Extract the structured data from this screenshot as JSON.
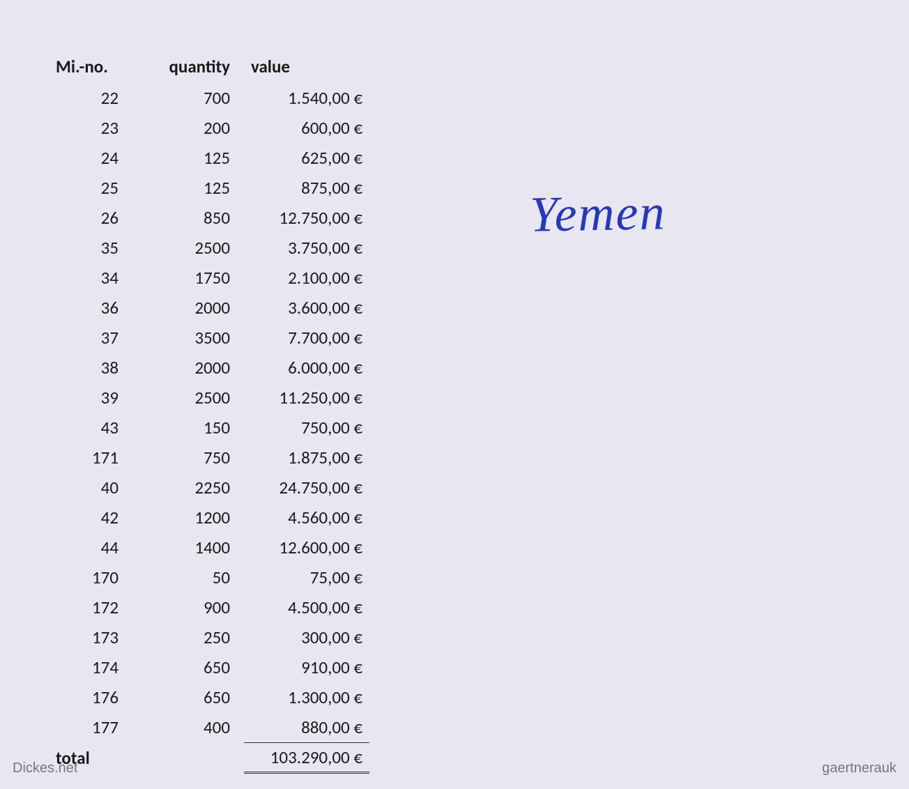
{
  "table": {
    "headers": {
      "mi": "Mi.-no.",
      "quantity": "quantity",
      "value": "value"
    },
    "rows": [
      {
        "mi": "22",
        "quantity": "700",
        "value": "1.540,00 €"
      },
      {
        "mi": "23",
        "quantity": "200",
        "value": "600,00 €"
      },
      {
        "mi": "24",
        "quantity": "125",
        "value": "625,00 €"
      },
      {
        "mi": "25",
        "quantity": "125",
        "value": "875,00 €"
      },
      {
        "mi": "26",
        "quantity": "850",
        "value": "12.750,00 €"
      },
      {
        "mi": "35",
        "quantity": "2500",
        "value": "3.750,00 €"
      },
      {
        "mi": "34",
        "quantity": "1750",
        "value": "2.100,00 €"
      },
      {
        "mi": "36",
        "quantity": "2000",
        "value": "3.600,00 €"
      },
      {
        "mi": "37",
        "quantity": "3500",
        "value": "7.700,00 €"
      },
      {
        "mi": "38",
        "quantity": "2000",
        "value": "6.000,00 €"
      },
      {
        "mi": "39",
        "quantity": "2500",
        "value": "11.250,00 €"
      },
      {
        "mi": "43",
        "quantity": "150",
        "value": "750,00 €"
      },
      {
        "mi": "171",
        "quantity": "750",
        "value": "1.875,00 €"
      },
      {
        "mi": "40",
        "quantity": "2250",
        "value": "24.750,00 €"
      },
      {
        "mi": "42",
        "quantity": "1200",
        "value": "4.560,00 €"
      },
      {
        "mi": "44",
        "quantity": "1400",
        "value": "12.600,00 €"
      },
      {
        "mi": "170",
        "quantity": "50",
        "value": "75,00 €"
      },
      {
        "mi": "172",
        "quantity": "900",
        "value": "4.500,00 €"
      },
      {
        "mi": "173",
        "quantity": "250",
        "value": "300,00 €"
      },
      {
        "mi": "174",
        "quantity": "650",
        "value": "910,00 €"
      },
      {
        "mi": "176",
        "quantity": "650",
        "value": "1.300,00 €"
      },
      {
        "mi": "177",
        "quantity": "400",
        "value": "880,00 €"
      }
    ],
    "total": {
      "label": "total",
      "value": "103.290,00 €"
    }
  },
  "handwriting": "Yemen",
  "watermarks": {
    "left": "Dickes.net",
    "right": "gaertnerauk"
  },
  "styling": {
    "background_color": "#e8e6f0",
    "text_color": "#1a1a1a",
    "handwriting_color": "#2838b8",
    "watermark_color": "#777777",
    "font_family": "Calibri",
    "header_fontsize": 25,
    "body_fontsize": 25,
    "handwriting_fontsize": 72
  }
}
